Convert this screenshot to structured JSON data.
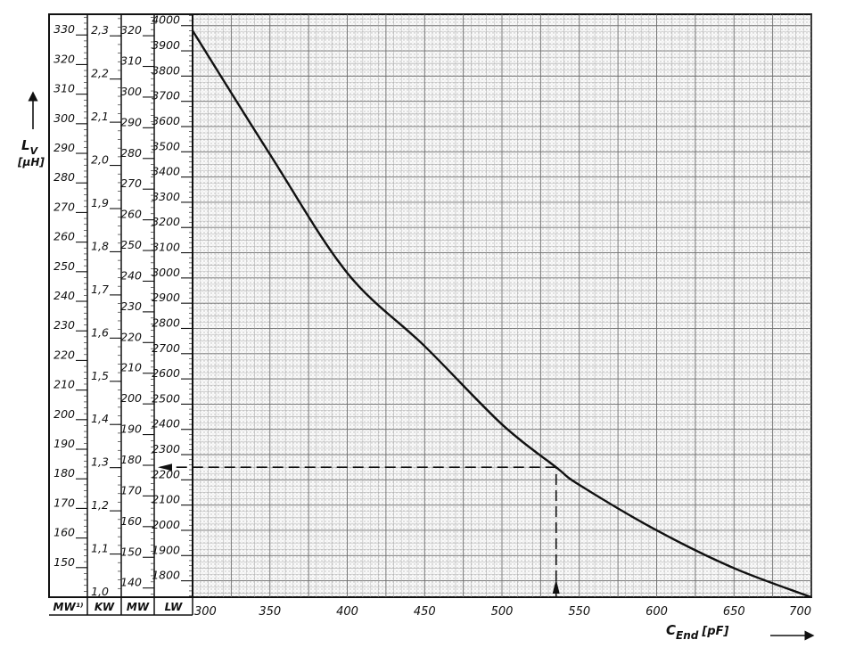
{
  "chart_data": {
    "type": "line",
    "x_axis": {
      "symbol": "C",
      "subscript": "End",
      "unit": "[pF]",
      "range": [
        300,
        700
      ],
      "ticks": [
        300,
        350,
        400,
        450,
        500,
        550,
        600,
        650,
        700
      ]
    },
    "y_axis": {
      "symbol": "L",
      "subscript": "V",
      "unit": "[µH]"
    },
    "scales": [
      {
        "name": "MW¹⁾",
        "range": [
          140,
          337
        ],
        "labels": [
          "150",
          "160",
          "170",
          "180",
          "190",
          "200",
          "210",
          "220",
          "230",
          "240",
          "250",
          "260",
          "270",
          "280",
          "290",
          "300",
          "310",
          "320",
          "330"
        ],
        "values": [
          150,
          160,
          170,
          180,
          190,
          200,
          210,
          220,
          230,
          240,
          250,
          260,
          270,
          280,
          290,
          300,
          310,
          320,
          330
        ]
      },
      {
        "name": "KW",
        "range": [
          1.0,
          2.35
        ],
        "labels": [
          "1,0",
          "1,1",
          "1,2",
          "1,3",
          "1,4",
          "1,5",
          "1,6",
          "1,7",
          "1,8",
          "1,9",
          "2,0",
          "2,1",
          "2,2",
          "2,3"
        ],
        "values": [
          1.0,
          1.1,
          1.2,
          1.3,
          1.4,
          1.5,
          1.6,
          1.7,
          1.8,
          1.9,
          2.0,
          2.1,
          2.2,
          2.3
        ]
      },
      {
        "name": "MW",
        "range": [
          137,
          327
        ],
        "labels": [
          "140",
          "150",
          "160",
          "170",
          "180",
          "190",
          "200",
          "210",
          "220",
          "230",
          "240",
          "250",
          "260",
          "270",
          "280",
          "290",
          "300",
          "310",
          "320"
        ],
        "values": [
          140,
          150,
          160,
          170,
          180,
          190,
          200,
          210,
          220,
          230,
          240,
          250,
          260,
          270,
          280,
          290,
          300,
          310,
          320
        ]
      },
      {
        "name": "LW",
        "range": [
          1735,
          4045
        ],
        "labels": [
          "1800",
          "1900",
          "2000",
          "2100",
          "2200",
          "2300",
          "2400",
          "2500",
          "2600",
          "2700",
          "2800",
          "2900",
          "3000",
          "3100",
          "3200",
          "3300",
          "3400",
          "3500",
          "3600",
          "3700",
          "3800",
          "3900",
          "4000"
        ],
        "values": [
          1800,
          1900,
          2000,
          2100,
          2200,
          2300,
          2400,
          2500,
          2600,
          2700,
          2800,
          2900,
          3000,
          3100,
          3200,
          3300,
          3400,
          3500,
          3600,
          3700,
          3800,
          3900,
          4000
        ]
      }
    ],
    "series": [
      {
        "scale": "LW",
        "x": [
          300,
          350,
          400,
          450,
          500,
          535,
          550,
          600,
          650,
          700
        ],
        "y": [
          3980,
          3490,
          3020,
          2730,
          2420,
          2250,
          2180,
          2000,
          1850,
          1735
        ]
      }
    ],
    "example_reading": {
      "x": 535,
      "y": 2250,
      "scale": "LW"
    },
    "grid": true
  }
}
